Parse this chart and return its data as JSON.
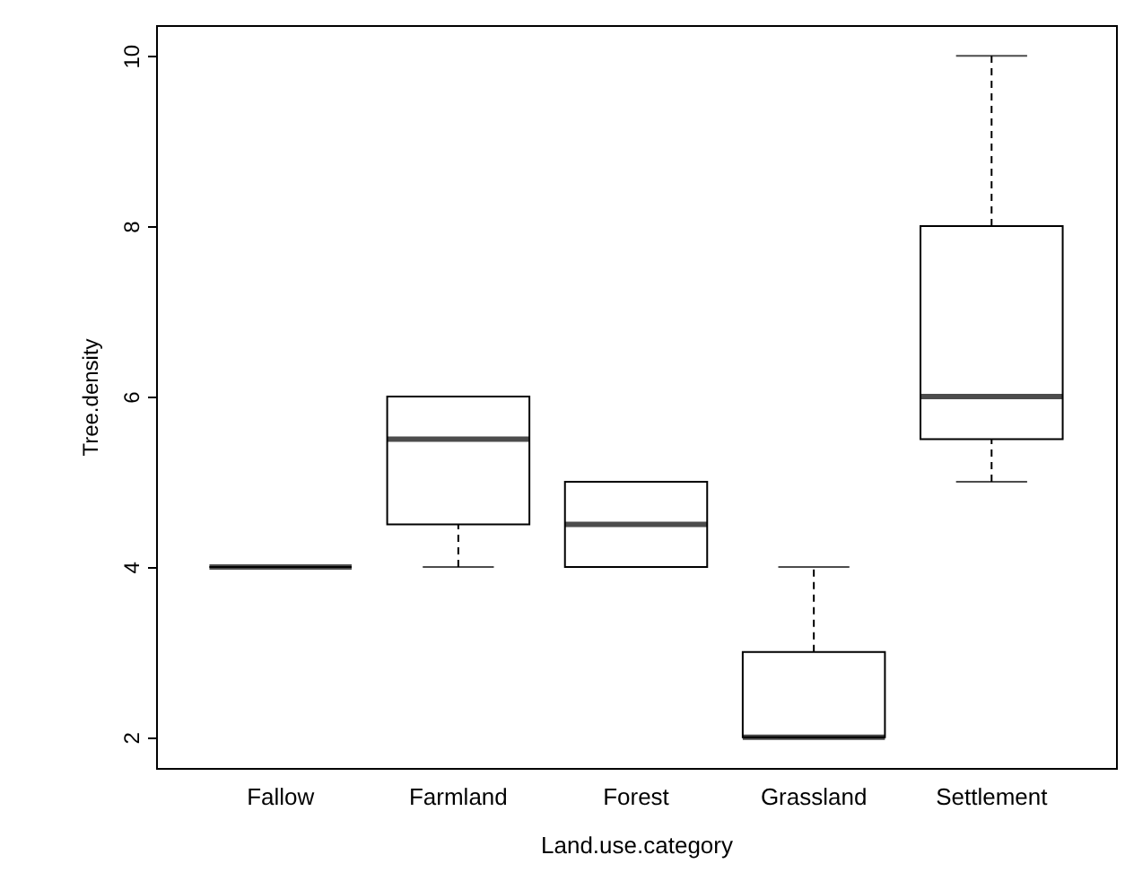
{
  "chart_data": {
    "type": "box",
    "xlabel": "Land.use.category",
    "ylabel": "Tree.density",
    "categories": [
      "Fallow",
      "Farmland",
      "Forest",
      "Grassland",
      "Settlement"
    ],
    "boxes": [
      {
        "low": 4,
        "q1": 4,
        "median": 4,
        "q3": 4,
        "high": 4
      },
      {
        "low": 4,
        "q1": 4.5,
        "median": 5.5,
        "q3": 6,
        "high": 6
      },
      {
        "low": 4,
        "q1": 4,
        "median": 4.5,
        "q3": 5,
        "high": 5
      },
      {
        "low": 2,
        "q1": 2,
        "median": 2,
        "q3": 3,
        "high": 4
      },
      {
        "low": 5,
        "q1": 5.5,
        "median": 6,
        "q3": 8,
        "high": 10
      }
    ],
    "ylim": [
      1.64,
      10.36
    ],
    "yticks": [
      2,
      4,
      6,
      8,
      10
    ],
    "grid": false
  }
}
